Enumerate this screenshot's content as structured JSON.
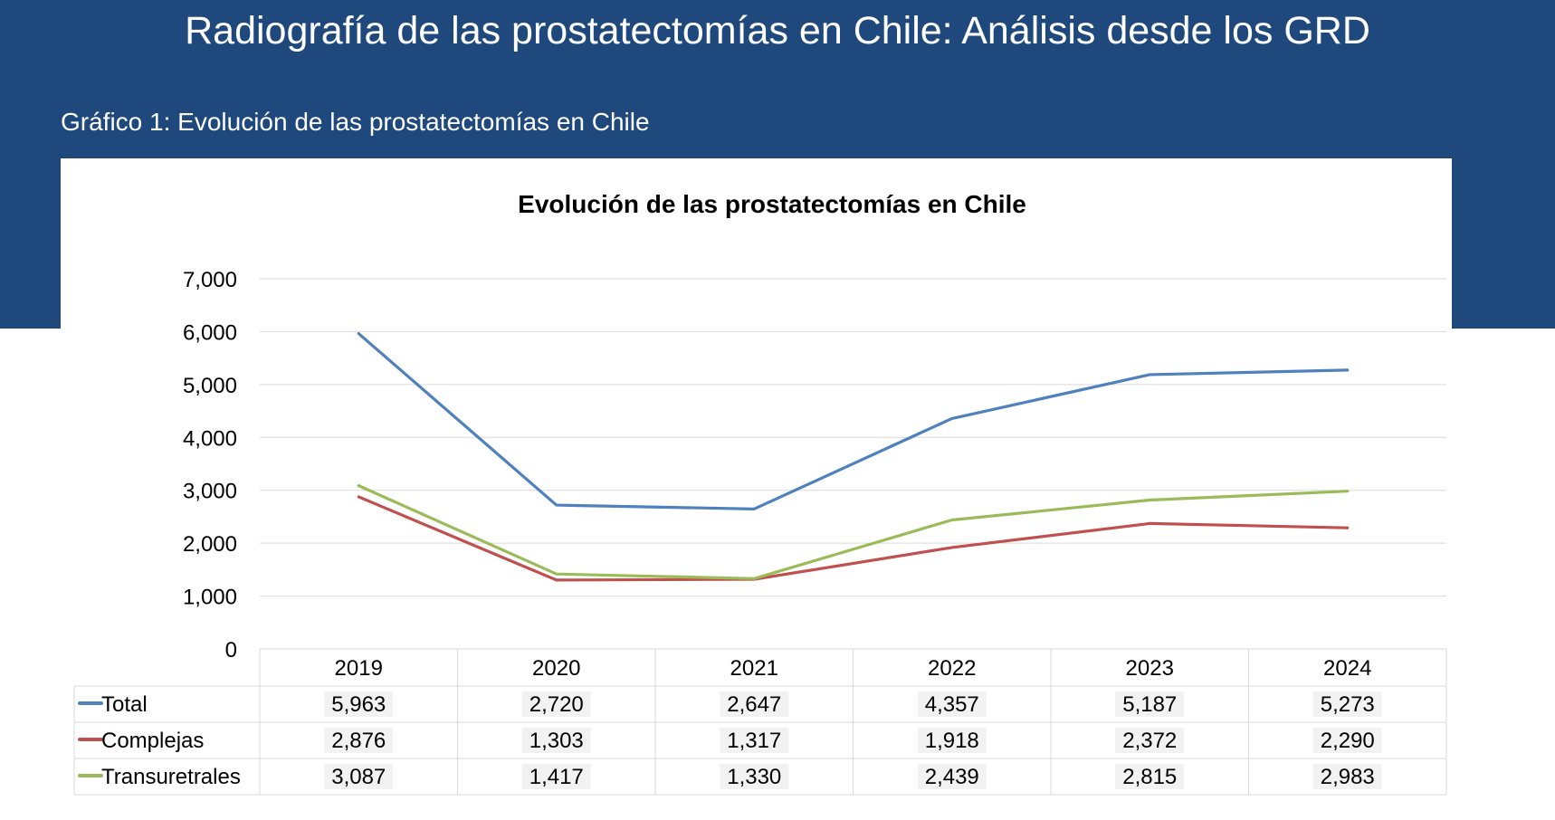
{
  "page": {
    "title": "Radiografía de las prostatectomías en Chile: Análisis desde los GRD",
    "subtitle": "Gráfico 1: Evolución de las prostatectomías en Chile"
  },
  "colors": {
    "banner": "#1f497d",
    "Total": "#4f81bd",
    "Complejas": "#c0504d",
    "Transuretrales": "#9bbb59"
  },
  "chart_data": {
    "type": "line",
    "title": "Evolución de las prostatectomías en Chile",
    "categories": [
      "2019",
      "2020",
      "2021",
      "2022",
      "2023",
      "2024"
    ],
    "series": [
      {
        "name": "Total",
        "values": [
          5963,
          2720,
          2647,
          4357,
          5187,
          5273
        ]
      },
      {
        "name": "Complejas",
        "values": [
          2876,
          1303,
          1317,
          1918,
          2372,
          2290
        ]
      },
      {
        "name": "Transuretrales",
        "values": [
          3087,
          1417,
          1330,
          2439,
          2815,
          2983
        ]
      }
    ],
    "display_values": [
      [
        "5,963",
        "2,720",
        "2,647",
        "4,357",
        "5,187",
        "5,273"
      ],
      [
        "2,876",
        "1,303",
        "1,317",
        "1,918",
        "2,372",
        "2,290"
      ],
      [
        "3,087",
        "1,417",
        "1,330",
        "2,439",
        "2,815",
        "2,983"
      ]
    ],
    "y_ticks": [
      "0",
      "1,000",
      "2,000",
      "3,000",
      "4,000",
      "5,000",
      "6,000",
      "7,000"
    ],
    "ylim": [
      0,
      7000
    ],
    "grid": true,
    "legend": "data-table"
  }
}
